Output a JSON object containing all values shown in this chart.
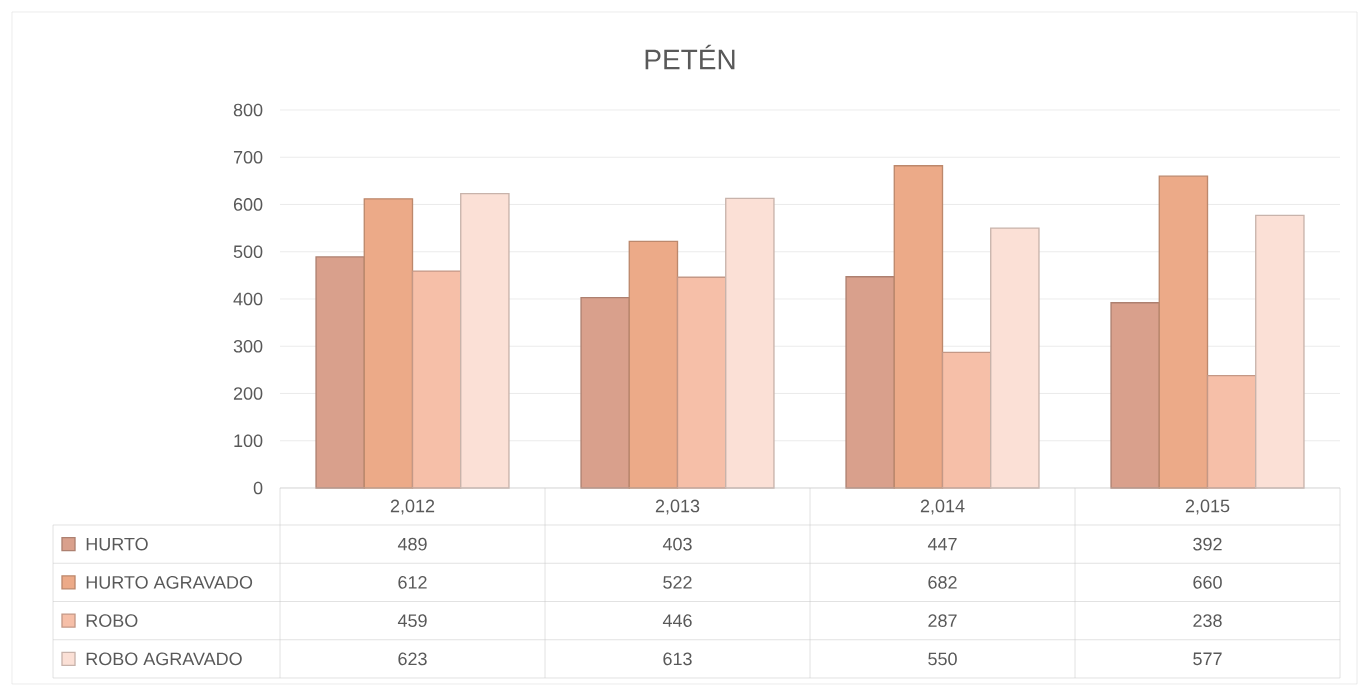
{
  "chart_data": {
    "type": "bar",
    "title": "PETÉN",
    "categories": [
      "2,012",
      "2,013",
      "2,014",
      "2,015"
    ],
    "series": [
      {
        "name": "HURTO",
        "color": "#d9a08c",
        "values": [
          489,
          403,
          447,
          392
        ]
      },
      {
        "name": "HURTO AGRAVADO",
        "color": "#ecaa88",
        "values": [
          612,
          522,
          682,
          660
        ]
      },
      {
        "name": "ROBO",
        "color": "#f6bfa8",
        "values": [
          459,
          446,
          287,
          238
        ]
      },
      {
        "name": "ROBO AGRAVADO",
        "color": "#fbe0d6",
        "values": [
          623,
          613,
          550,
          577
        ]
      }
    ],
    "ylim": [
      0,
      800
    ],
    "yticks": [
      0,
      100,
      200,
      300,
      400,
      500,
      600,
      700,
      800
    ],
    "grid": "y",
    "legend": "bottom",
    "data_labels": true
  }
}
